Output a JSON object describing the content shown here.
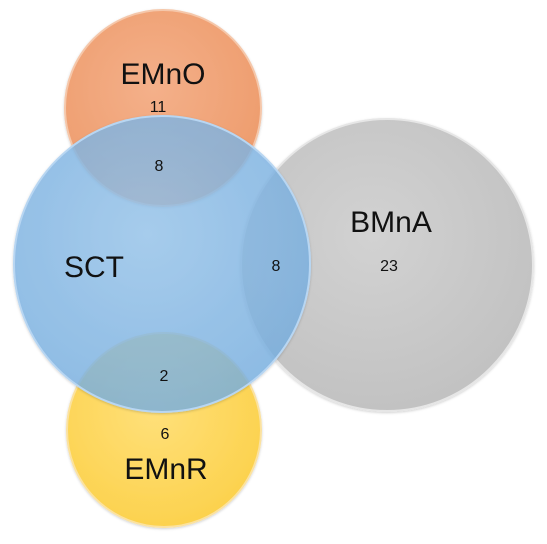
{
  "sets": {
    "emno": {
      "label": "EMnO",
      "color": "#F2A57C"
    },
    "emnr": {
      "label": "EMnR",
      "color": "#FFD65A"
    },
    "bmna": {
      "label": "BMnA",
      "color": "#C8C8C8"
    },
    "sct": {
      "label": "SCT",
      "color": "#8FBDE8"
    }
  },
  "counts": {
    "emno_only": "11",
    "emno_sct": "8",
    "sct_bmna": "8",
    "bmna_only": "23",
    "sct_emnr": "2",
    "emnr_only": "6"
  }
}
